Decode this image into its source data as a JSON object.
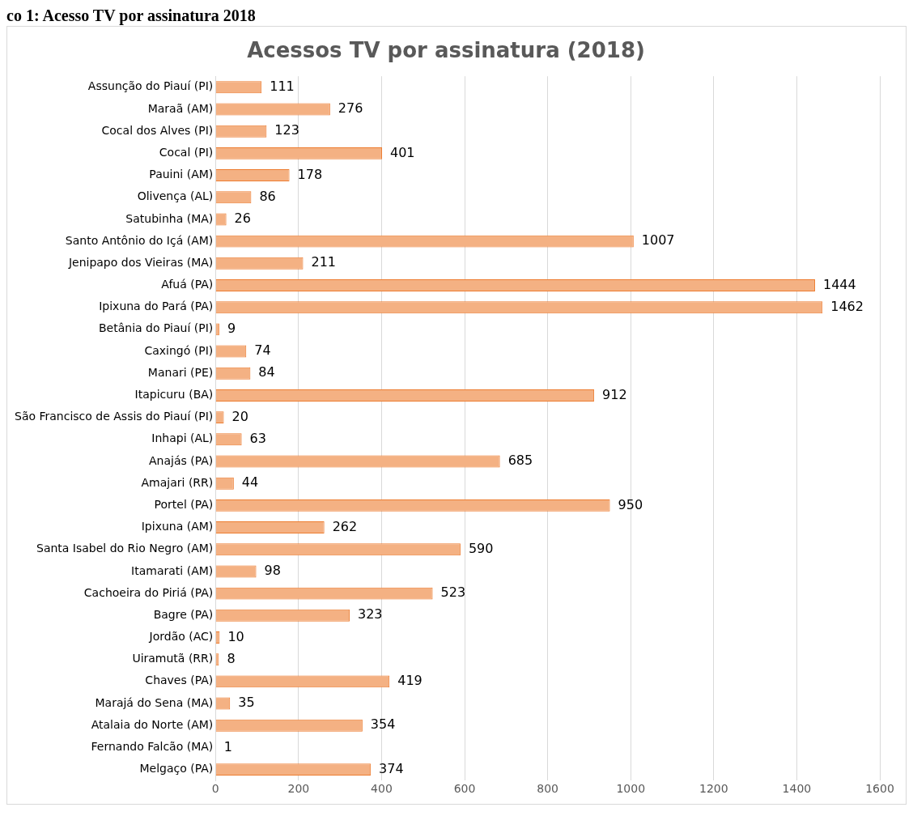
{
  "chart_data": {
    "type": "bar",
    "orientation": "horizontal",
    "title": "Acessos TV por assinatura (2018)",
    "annotations": [
      "co 1: Acesso TV por assinatura 2018"
    ],
    "categories": [
      "Assunção do Piauí (PI)",
      "Maraã (AM)",
      "Cocal dos Alves (PI)",
      "Cocal (PI)",
      "Pauini (AM)",
      "Olivença (AL)",
      "Satubinha (MA)",
      "Santo Antônio do Içá (AM)",
      "Jenipapo dos Vieiras (MA)",
      "Afuá (PA)",
      "Ipixuna do Pará (PA)",
      "Betânia do Piauí (PI)",
      "Caxingó (PI)",
      "Manari (PE)",
      "Itapicuru (BA)",
      "São Francisco de Assis do Piauí (PI)",
      "Inhapi (AL)",
      "Anajás (PA)",
      "Amajari (RR)",
      "Portel (PA)",
      "Ipixuna (AM)",
      "Santa Isabel do Rio Negro (AM)",
      "Itamarati (AM)",
      "Cachoeira do Piriá (PA)",
      "Bagre (PA)",
      "Jordão (AC)",
      "Uiramutã (RR)",
      "Chaves (PA)",
      "Marajá do Sena (MA)",
      "Atalaia do Norte (AM)",
      "Fernando Falcão (MA)",
      "Melgaço (PA)"
    ],
    "values": [
      111,
      276,
      123,
      401,
      178,
      86,
      26,
      1007,
      211,
      1444,
      1462,
      9,
      74,
      84,
      912,
      20,
      63,
      685,
      44,
      950,
      262,
      590,
      98,
      523,
      323,
      10,
      8,
      419,
      35,
      354,
      1,
      374
    ],
    "color": "#f4b183",
    "xlim": [
      0,
      1600
    ],
    "xticks": [
      0,
      200,
      400,
      600,
      800,
      1000,
      1200,
      1400,
      1600
    ],
    "grid": "x",
    "legend": false,
    "data_labels": true
  }
}
